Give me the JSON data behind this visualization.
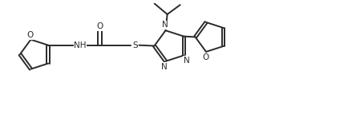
{
  "bg_color": "#ffffff",
  "line_color": "#2a2a2a",
  "line_width": 1.4,
  "figsize": [
    4.44,
    1.43
  ],
  "dpi": 100,
  "xlim": [
    0,
    10.5
  ],
  "ylim": [
    0,
    3.2
  ]
}
